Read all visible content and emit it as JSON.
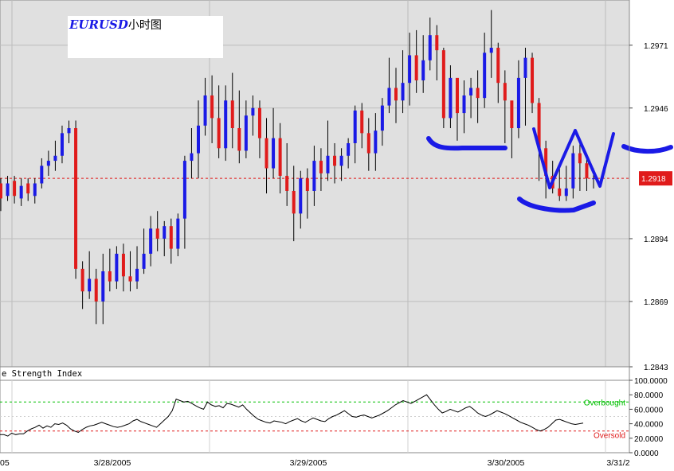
{
  "chart_data": [
    {
      "type": "candlestick",
      "title_symbol": "EURUSD",
      "title_suffix": "小时图",
      "yticks": [
        "1.2971",
        "1.2946",
        "1.2894",
        "1.2869",
        "1.2843"
      ],
      "ylim": [
        1.2843,
        1.2989
      ],
      "last_price_label": "1.2918",
      "last_price": 1.2918,
      "colors": {
        "up": "#1a1ae6",
        "down": "#e01b1b",
        "background": "#e0e0e0",
        "last_price_line": "#e01b1b",
        "annotation": "#1a1ae6"
      },
      "candles": [
        [
          1.2916,
          1.291,
          1.2918,
          1.2905
        ],
        [
          1.2911,
          1.2916,
          1.2919,
          1.2909
        ],
        [
          1.2917,
          1.2911,
          1.2919,
          1.2908
        ],
        [
          1.291,
          1.2915,
          1.2918,
          1.2907
        ],
        [
          1.2916,
          1.2912,
          1.2918,
          1.2909
        ],
        [
          1.2911,
          1.2916,
          1.2918,
          1.2908
        ],
        [
          1.2916,
          1.2923,
          1.2926,
          1.2914
        ],
        [
          1.2923,
          1.2925,
          1.2929,
          1.2919
        ],
        [
          1.2925,
          1.2927,
          1.2933,
          1.2921
        ],
        [
          1.2927,
          1.2936,
          1.2939,
          1.2924
        ],
        [
          1.2936,
          1.2938,
          1.2941,
          1.2932
        ],
        [
          1.2938,
          1.2882,
          1.2941,
          1.2878
        ],
        [
          1.2882,
          1.2873,
          1.2885,
          1.2866
        ],
        [
          1.2873,
          1.2878,
          1.2889,
          1.287
        ],
        [
          1.2878,
          1.2869,
          1.2882,
          1.286
        ],
        [
          1.2869,
          1.2881,
          1.2888,
          1.286
        ],
        [
          1.2881,
          1.2877,
          1.289,
          1.2873
        ],
        [
          1.2877,
          1.2888,
          1.2891,
          1.2874
        ],
        [
          1.2888,
          1.2879,
          1.2892,
          1.2873
        ],
        [
          1.2879,
          1.2877,
          1.2889,
          1.2873
        ],
        [
          1.2877,
          1.2882,
          1.2891,
          1.2874
        ],
        [
          1.2882,
          1.2888,
          1.2898,
          1.288
        ],
        [
          1.2888,
          1.2898,
          1.2903,
          1.2883
        ],
        [
          1.2898,
          1.2894,
          1.2905,
          1.2889
        ],
        [
          1.2894,
          1.2899,
          1.2901,
          1.2887
        ],
        [
          1.2899,
          1.289,
          1.2902,
          1.2884
        ],
        [
          1.289,
          1.2902,
          1.2904,
          1.2887
        ],
        [
          1.2902,
          1.2925,
          1.2927,
          1.289
        ],
        [
          1.2925,
          1.2928,
          1.2938,
          1.2918
        ],
        [
          1.2928,
          1.2939,
          1.2949,
          1.2918
        ],
        [
          1.2939,
          1.2951,
          1.2958,
          1.2935
        ],
        [
          1.2951,
          1.2942,
          1.2959,
          1.2932
        ],
        [
          1.2942,
          1.293,
          1.2955,
          1.2926
        ],
        [
          1.293,
          1.2949,
          1.2955,
          1.2925
        ],
        [
          1.2949,
          1.2938,
          1.296,
          1.293
        ],
        [
          1.2938,
          1.2929,
          1.2953,
          1.2924
        ],
        [
          1.2929,
          1.2943,
          1.2949,
          1.2926
        ],
        [
          1.2943,
          1.2946,
          1.2951,
          1.2935
        ],
        [
          1.2946,
          1.2934,
          1.2949,
          1.2926
        ],
        [
          1.2934,
          1.2922,
          1.2942,
          1.2912
        ],
        [
          1.2922,
          1.2934,
          1.2946,
          1.2918
        ],
        [
          1.2934,
          1.2919,
          1.294,
          1.2912
        ],
        [
          1.2919,
          1.2913,
          1.2932,
          1.2907
        ],
        [
          1.2913,
          1.2904,
          1.2923,
          1.2893
        ],
        [
          1.2904,
          1.2918,
          1.2921,
          1.2898
        ],
        [
          1.2918,
          1.2913,
          1.2922,
          1.2902
        ],
        [
          1.2913,
          1.2925,
          1.2931,
          1.2907
        ],
        [
          1.2925,
          1.292,
          1.293,
          1.2913
        ],
        [
          1.292,
          1.2927,
          1.2941,
          1.2917
        ],
        [
          1.2927,
          1.2923,
          1.2932,
          1.2916
        ],
        [
          1.2923,
          1.2927,
          1.293,
          1.2917
        ],
        [
          1.2927,
          1.2932,
          1.2934,
          1.2922
        ],
        [
          1.2932,
          1.2945,
          1.2947,
          1.2924
        ],
        [
          1.2945,
          1.2936,
          1.2948,
          1.293
        ],
        [
          1.2936,
          1.2928,
          1.2942,
          1.2921
        ],
        [
          1.2928,
          1.2937,
          1.2944,
          1.2921
        ],
        [
          1.2937,
          1.2947,
          1.295,
          1.2931
        ],
        [
          1.2947,
          1.2954,
          1.2966,
          1.2944
        ],
        [
          1.2954,
          1.2949,
          1.2962,
          1.294
        ],
        [
          1.2949,
          1.2956,
          1.2969,
          1.2944
        ],
        [
          1.2956,
          1.2967,
          1.2976,
          1.2947
        ],
        [
          1.2967,
          1.2957,
          1.2977,
          1.2952
        ],
        [
          1.2957,
          1.2965,
          1.2975,
          1.2952
        ],
        [
          1.2965,
          1.2975,
          1.2982,
          1.2961
        ],
        [
          1.2975,
          1.2969,
          1.2979,
          1.2957
        ],
        [
          1.2969,
          1.2942,
          1.297,
          1.2938
        ],
        [
          1.2942,
          1.2958,
          1.2963,
          1.2938
        ],
        [
          1.2958,
          1.2944,
          1.2949,
          1.2933
        ],
        [
          1.2944,
          1.2951,
          1.2957,
          1.2936
        ],
        [
          1.2951,
          1.2954,
          1.2958,
          1.2942
        ],
        [
          1.2954,
          1.295,
          1.2961,
          1.294
        ],
        [
          1.295,
          1.2968,
          1.2976,
          1.2946
        ],
        [
          1.2968,
          1.297,
          1.2985,
          1.2958
        ],
        [
          1.297,
          1.2956,
          1.2972,
          1.2948
        ],
        [
          1.2956,
          1.2949,
          1.2961,
          1.2932
        ],
        [
          1.2949,
          1.2938,
          1.2945,
          1.2926
        ],
        [
          1.2938,
          1.2958,
          1.2965,
          1.2934
        ],
        [
          1.2958,
          1.2966,
          1.297,
          1.2939
        ],
        [
          1.2966,
          1.2948,
          1.2968,
          1.2944
        ],
        [
          1.2948,
          1.293,
          1.295,
          1.2917
        ],
        [
          1.293,
          1.2919,
          1.2933,
          1.291
        ],
        [
          1.2919,
          1.2914,
          1.2925,
          1.2912
        ],
        [
          1.2914,
          1.2911,
          1.2923,
          1.2909
        ],
        [
          1.2911,
          1.2914,
          1.2923,
          1.2909
        ],
        [
          1.2914,
          1.2928,
          1.2931,
          1.291
        ],
        [
          1.2928,
          1.2924,
          1.2934,
          1.2913
        ],
        [
          1.2924,
          1.2918,
          1.2928,
          1.2913
        ],
        [
          1.2918,
          1.2918,
          1.2922,
          1.2914
        ]
      ]
    },
    {
      "type": "line",
      "title": "e Strength Index",
      "yticks": [
        "100.0000",
        "80.0000",
        "60.0000",
        "40.0000",
        "20.0000",
        "0.0000"
      ],
      "ylim": [
        0,
        100
      ],
      "overbought_label": "Overbought",
      "oversold_label": "Oversold",
      "overbought_level": 70,
      "oversold_level": 30,
      "colors": {
        "line": "#000000",
        "overbought": "#00c000",
        "oversold": "#e01b1b"
      },
      "x_labels": [
        "05",
        "3/28/2005",
        "3/29/2005",
        "3/30/2005",
        "3/31/2"
      ],
      "values": [
        25,
        25,
        23,
        27,
        25,
        26,
        26,
        30,
        33,
        35,
        38,
        34,
        37,
        35,
        40,
        39,
        41,
        38,
        33,
        30,
        28,
        32,
        35,
        37,
        38,
        40,
        42,
        40,
        38,
        36,
        35,
        36,
        38,
        40,
        44,
        46,
        43,
        41,
        39,
        37,
        35,
        40,
        45,
        50,
        58,
        74,
        72,
        70,
        71,
        68,
        65,
        62,
        60,
        70,
        66,
        64,
        65,
        62,
        68,
        67,
        65,
        63,
        66,
        60,
        55,
        50,
        46,
        44,
        42,
        41,
        44,
        43,
        42,
        40,
        43,
        45,
        47,
        44,
        42,
        45,
        48,
        46,
        44,
        43,
        47,
        50,
        52,
        55,
        58,
        54,
        50,
        49,
        51,
        52,
        50,
        48,
        50,
        52,
        55,
        58,
        62,
        66,
        69,
        72,
        70,
        68,
        71,
        74,
        77,
        80,
        73,
        66,
        60,
        55,
        57,
        60,
        58,
        56,
        59,
        62,
        64,
        60,
        55,
        52,
        50,
        52,
        55,
        58,
        56,
        54,
        51,
        48,
        45,
        42,
        40,
        38,
        35,
        32,
        30,
        32,
        35,
        40,
        45,
        46,
        44,
        42,
        40,
        39,
        40,
        41
      ]
    }
  ]
}
